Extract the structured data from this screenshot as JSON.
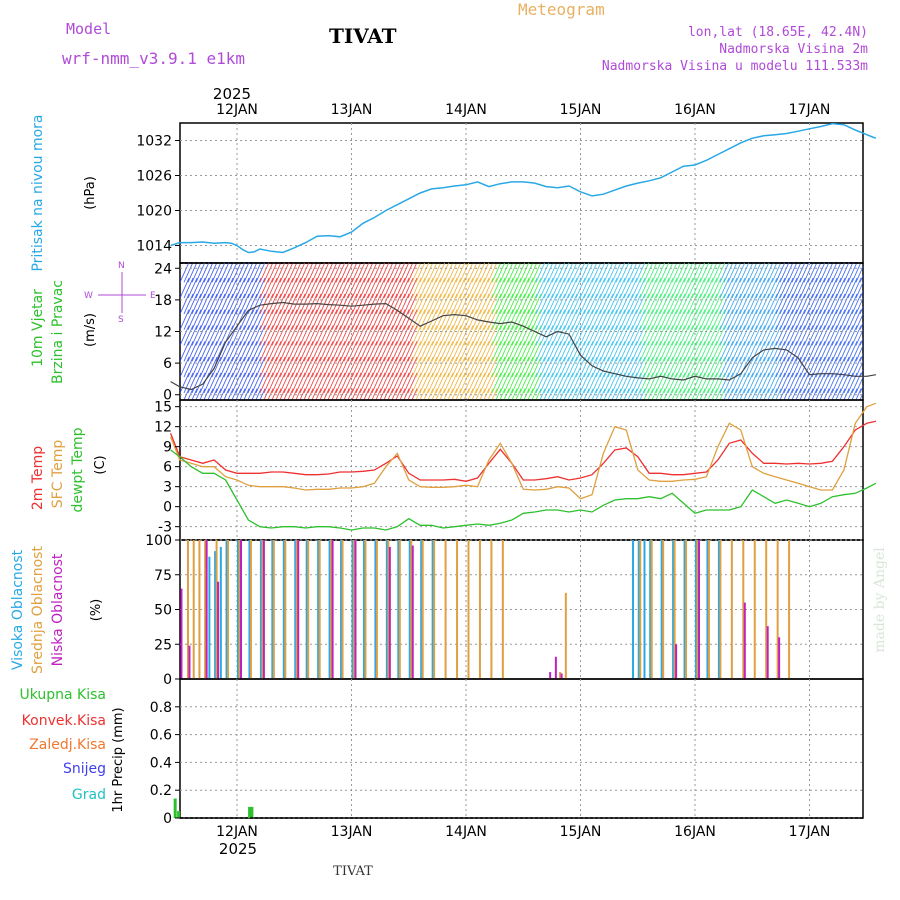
{
  "header": {
    "model_label": "Model",
    "model_name": "wrf-nmm_v3.9.1 e1km",
    "station": "TIVAT",
    "meteogram": "Meteogram",
    "lonlat": "lon,lat (18.65E, 42.4N)",
    "altitude": "Nadmorska Visina 2m",
    "model_altitude": "Nadmorska Visina u modelu 111.533m",
    "footer_station": "TIVAT",
    "credit": "made by Angel",
    "colors": {
      "model": "#b04ad8",
      "meteogram": "#e8b060",
      "station": "#000000"
    }
  },
  "time_axis": {
    "year": "2025",
    "days": [
      "12JAN",
      "13JAN",
      "14JAN",
      "15JAN",
      "16JAN",
      "17JAN"
    ]
  },
  "panels": {
    "pressure": {
      "label": "Pritisak na nivou mora",
      "unit": "(hPa)"
    },
    "wind": {
      "label1": "10m Vjetar",
      "label2": "Brzina i Pravac",
      "unit": "(m/s)",
      "compass": {
        "w": "W",
        "e": "E",
        "s": "S",
        "n": "N"
      }
    },
    "temp": {
      "label1": "2m Temp",
      "label2": "SFC Temp",
      "label3": "dewpt Temp",
      "unit": "(C)"
    },
    "cloud": {
      "label1": "Visoka Oblacnost",
      "label2": "Srednja Oblacnost",
      "label3": "Niska Oblacnost",
      "unit": "(%)"
    },
    "precip": {
      "legend": [
        "Ukupna Kisa",
        "Konvek.Kisa",
        "Zaledj.Kisa",
        "Snijeg",
        "Grad"
      ],
      "legend_colors": [
        "#2ec02e",
        "#ee3030",
        "#f07830",
        "#4040ee",
        "#20c0c0"
      ],
      "unit": "1hr Precip (mm)"
    }
  },
  "chart_data": [
    {
      "type": "line",
      "title": "Pritisak na nivou mora",
      "ylabel": "(hPa)",
      "x_unit": "days after 2025-01-12 00 UTC",
      "ylim": [
        1011,
        1035
      ],
      "yticks": [
        1014,
        1020,
        1026,
        1032
      ],
      "series": [
        {
          "color": "#29a8e6",
          "x": [
            -0.58,
            -0.5,
            -0.4,
            -0.3,
            -0.2,
            -0.1,
            -0.05,
            0.0,
            0.05,
            0.1,
            0.15,
            0.2,
            0.3,
            0.4,
            0.5,
            0.6,
            0.7,
            0.8,
            0.9,
            1.0,
            1.1,
            1.2,
            1.3,
            1.4,
            1.5,
            1.6,
            1.7,
            1.8,
            1.9,
            2.0,
            2.1,
            2.2,
            2.3,
            2.4,
            2.5,
            2.6,
            2.7,
            2.8,
            2.9,
            3.0,
            3.1,
            3.2,
            3.3,
            3.4,
            3.5,
            3.6,
            3.7,
            3.8,
            3.9,
            4.0,
            4.1,
            4.2,
            4.3,
            4.4,
            4.5,
            4.6,
            4.7,
            4.8,
            4.9,
            5.0,
            5.1,
            5.2,
            5.3,
            5.4,
            5.5,
            5.55,
            5.58
          ],
          "values": [
            1014.0,
            1014.5,
            1014.5,
            1014.6,
            1014.4,
            1014.5,
            1014.4,
            1014.0,
            1013.3,
            1012.8,
            1012.9,
            1013.4,
            1013.0,
            1012.8,
            1013.6,
            1014.5,
            1015.6,
            1015.7,
            1015.5,
            1016.3,
            1017.8,
            1018.8,
            1020.0,
            1021.0,
            1022.0,
            1023.0,
            1023.7,
            1023.9,
            1024.2,
            1024.4,
            1024.9,
            1024.1,
            1024.6,
            1024.9,
            1024.9,
            1024.7,
            1024.1,
            1023.9,
            1024.2,
            1023.2,
            1022.5,
            1022.8,
            1023.5,
            1024.2,
            1024.7,
            1025.1,
            1025.6,
            1026.6,
            1027.6,
            1027.8,
            1028.6,
            1029.6,
            1030.6,
            1031.6,
            1032.4,
            1032.8,
            1033.0,
            1033.2,
            1033.6,
            1034.0,
            1034.4,
            1034.9,
            1034.7,
            1033.8,
            1033.0,
            1032.6,
            1032.4
          ]
        }
      ]
    },
    {
      "type": "line",
      "title": "10m Vjetar Brzina i Pravac",
      "ylabel": "(m/s)",
      "x_unit": "days after 2025-01-12 00 UTC",
      "ylim": [
        -1,
        25
      ],
      "yticks": [
        0,
        6,
        12,
        18,
        24
      ],
      "series": [
        {
          "name": "10m Vjetar",
          "color": "#444444",
          "x": [
            -0.58,
            -0.5,
            -0.4,
            -0.3,
            -0.2,
            -0.1,
            0.0,
            0.1,
            0.2,
            0.3,
            0.4,
            0.5,
            0.6,
            0.7,
            0.8,
            0.9,
            1.0,
            1.1,
            1.2,
            1.3,
            1.4,
            1.5,
            1.6,
            1.7,
            1.8,
            1.9,
            2.0,
            2.1,
            2.2,
            2.3,
            2.4,
            2.5,
            2.6,
            2.7,
            2.8,
            2.9,
            3.0,
            3.1,
            3.2,
            3.3,
            3.4,
            3.5,
            3.6,
            3.7,
            3.8,
            3.9,
            4.0,
            4.1,
            4.2,
            4.3,
            4.4,
            4.5,
            4.6,
            4.7,
            4.8,
            4.9,
            5.0,
            5.1,
            5.2,
            5.3,
            5.4,
            5.5,
            5.58
          ],
          "values": [
            2.5,
            1.5,
            1.0,
            2.0,
            5.0,
            10.0,
            13.0,
            16.0,
            17.0,
            17.3,
            17.5,
            17.2,
            17.2,
            17.3,
            17.1,
            17.0,
            16.8,
            17.0,
            17.2,
            17.3,
            16.0,
            14.5,
            13.0,
            14.0,
            15.0,
            15.2,
            15.0,
            14.2,
            13.8,
            13.5,
            13.8,
            13.0,
            12.0,
            11.0,
            12.0,
            11.5,
            7.5,
            5.5,
            4.5,
            4.0,
            3.5,
            3.2,
            3.0,
            3.5,
            3.0,
            2.8,
            3.5,
            3.0,
            3.0,
            2.8,
            4.0,
            7.0,
            8.5,
            8.8,
            8.5,
            7.0,
            3.8,
            4.0,
            4.0,
            3.8,
            3.5,
            3.5,
            3.8
          ]
        }
      ]
    },
    {
      "type": "line",
      "title": "2m Temp / SFC Temp / dewpt Temp",
      "ylabel": "(C)",
      "x_unit": "days after 2025-01-12 00 UTC",
      "ylim": [
        -5,
        16
      ],
      "yticks": [
        -3,
        0,
        3,
        6,
        9,
        12,
        15
      ],
      "series": [
        {
          "name": "2m Temp",
          "color": "#ee3030",
          "x": [
            -0.58,
            -0.5,
            -0.4,
            -0.3,
            -0.2,
            -0.1,
            0.0,
            0.1,
            0.2,
            0.3,
            0.4,
            0.5,
            0.6,
            0.7,
            0.8,
            0.9,
            1.0,
            1.1,
            1.2,
            1.3,
            1.4,
            1.5,
            1.6,
            1.7,
            1.8,
            1.9,
            2.0,
            2.1,
            2.2,
            2.3,
            2.4,
            2.5,
            2.6,
            2.7,
            2.8,
            2.9,
            3.0,
            3.1,
            3.2,
            3.3,
            3.4,
            3.5,
            3.6,
            3.7,
            3.8,
            3.9,
            4.0,
            4.1,
            4.2,
            4.3,
            4.4,
            4.5,
            4.6,
            4.7,
            4.8,
            4.9,
            5.0,
            5.1,
            5.2,
            5.3,
            5.4,
            5.5,
            5.58
          ],
          "values": [
            11.0,
            7.5,
            7.0,
            6.5,
            7.0,
            5.5,
            5.0,
            5.0,
            5.0,
            5.2,
            5.2,
            5.0,
            4.8,
            4.8,
            4.9,
            5.2,
            5.2,
            5.3,
            5.5,
            6.5,
            7.6,
            5.0,
            4.0,
            4.0,
            4.0,
            4.1,
            3.8,
            4.3,
            6.5,
            8.6,
            6.5,
            4.0,
            4.0,
            4.2,
            4.5,
            4.0,
            4.3,
            4.8,
            6.5,
            8.5,
            8.8,
            7.5,
            5.0,
            5.0,
            4.8,
            4.8,
            5.0,
            5.2,
            7.0,
            9.5,
            10.0,
            8.0,
            6.5,
            6.5,
            6.4,
            6.5,
            6.4,
            6.5,
            6.8,
            9.0,
            11.5,
            12.5,
            12.8
          ]
        },
        {
          "name": "SFC Temp",
          "color": "#e0a040",
          "x": [
            -0.58,
            -0.5,
            -0.4,
            -0.3,
            -0.2,
            -0.1,
            0.0,
            0.1,
            0.2,
            0.3,
            0.4,
            0.5,
            0.6,
            0.7,
            0.8,
            0.9,
            1.0,
            1.1,
            1.2,
            1.3,
            1.4,
            1.5,
            1.6,
            1.7,
            1.8,
            1.9,
            2.0,
            2.1,
            2.2,
            2.3,
            2.4,
            2.5,
            2.6,
            2.7,
            2.8,
            2.9,
            3.0,
            3.1,
            3.2,
            3.3,
            3.4,
            3.5,
            3.6,
            3.7,
            3.8,
            3.9,
            4.0,
            4.1,
            4.2,
            4.3,
            4.4,
            4.5,
            4.6,
            4.7,
            4.8,
            4.9,
            5.0,
            5.1,
            5.2,
            5.3,
            5.4,
            5.5,
            5.58
          ],
          "values": [
            10.5,
            7.0,
            6.5,
            6.0,
            6.0,
            4.5,
            4.0,
            3.2,
            3.0,
            3.0,
            3.0,
            2.8,
            2.5,
            2.6,
            2.6,
            2.8,
            2.8,
            3.0,
            3.5,
            6.0,
            8.0,
            4.0,
            3.0,
            2.9,
            2.9,
            3.0,
            3.2,
            3.0,
            7.0,
            9.5,
            6.5,
            2.6,
            2.5,
            2.6,
            3.0,
            2.8,
            1.2,
            1.8,
            8.0,
            12.0,
            11.5,
            5.5,
            4.0,
            3.8,
            3.8,
            4.0,
            4.1,
            4.5,
            9.0,
            12.5,
            11.5,
            6.0,
            5.0,
            4.5,
            4.0,
            3.5,
            3.0,
            2.5,
            2.5,
            5.5,
            12.5,
            15.0,
            15.5
          ]
        },
        {
          "name": "dewpt Temp",
          "color": "#2ec02e",
          "x": [
            -0.58,
            -0.5,
            -0.4,
            -0.3,
            -0.2,
            -0.1,
            0.0,
            0.1,
            0.2,
            0.3,
            0.4,
            0.5,
            0.6,
            0.7,
            0.8,
            0.9,
            1.0,
            1.1,
            1.2,
            1.3,
            1.4,
            1.5,
            1.6,
            1.7,
            1.8,
            1.9,
            2.0,
            2.1,
            2.2,
            2.3,
            2.4,
            2.5,
            2.6,
            2.7,
            2.8,
            2.9,
            3.0,
            3.1,
            3.2,
            3.3,
            3.4,
            3.5,
            3.6,
            3.7,
            3.8,
            3.9,
            4.0,
            4.1,
            4.2,
            4.3,
            4.4,
            4.5,
            4.6,
            4.7,
            4.8,
            4.9,
            5.0,
            5.1,
            5.2,
            5.3,
            5.4,
            5.5,
            5.58
          ],
          "values": [
            8.5,
            7.5,
            6.0,
            5.0,
            5.0,
            4.0,
            1.0,
            -2.0,
            -3.0,
            -3.2,
            -3.0,
            -3.0,
            -3.2,
            -3.0,
            -3.0,
            -3.2,
            -3.5,
            -3.2,
            -3.2,
            -3.5,
            -3.0,
            -1.8,
            -2.8,
            -2.8,
            -3.2,
            -3.0,
            -2.8,
            -2.6,
            -2.8,
            -2.5,
            -2.0,
            -1.0,
            -0.8,
            -0.5,
            -0.5,
            -0.8,
            -0.5,
            -0.8,
            0.2,
            1.0,
            1.2,
            1.2,
            1.5,
            1.2,
            2.0,
            0.5,
            -1.0,
            -0.5,
            -0.5,
            -0.5,
            0.0,
            2.5,
            1.5,
            0.5,
            1.0,
            0.5,
            0.0,
            0.5,
            1.5,
            1.8,
            2.0,
            2.8,
            3.5
          ]
        }
      ]
    },
    {
      "type": "bar",
      "title": "Visoka / Srednja / Niska Oblacnost",
      "ylabel": "(%)",
      "x_unit": "days after 2025-01-12 00 UTC",
      "ylim": [
        0,
        100
      ],
      "yticks": [
        0,
        25,
        50,
        75,
        100
      ],
      "series": [
        {
          "name": "Visoka Oblacnost",
          "color": "#29a8e6",
          "x": [
            -0.25,
            -0.2,
            -0.15,
            -0.1,
            0.0,
            0.1,
            0.2,
            0.3,
            0.4,
            0.5,
            0.6,
            0.7,
            0.8,
            0.9,
            1.0,
            1.1,
            1.2,
            1.3,
            1.4,
            1.5,
            1.6,
            1.7,
            3.45,
            3.5,
            3.55,
            3.6,
            3.7,
            3.8,
            3.9,
            4.0,
            4.1,
            4.2
          ],
          "values": [
            88,
            92,
            95,
            100,
            100,
            100,
            100,
            100,
            100,
            100,
            100,
            100,
            100,
            100,
            100,
            100,
            100,
            100,
            100,
            100,
            100,
            100,
            100,
            100,
            100,
            100,
            100,
            100,
            100,
            100,
            100,
            100
          ]
        },
        {
          "name": "Srednja Oblacnost",
          "color": "#e0a040",
          "x": [
            -0.45,
            -0.4,
            -0.35,
            -0.3,
            -0.2,
            -0.1,
            0.0,
            0.1,
            0.2,
            0.3,
            0.4,
            0.5,
            0.6,
            0.7,
            0.8,
            0.9,
            1.0,
            1.1,
            1.2,
            1.3,
            1.4,
            1.5,
            1.6,
            1.7,
            1.8,
            1.9,
            2.0,
            2.1,
            2.2,
            2.3,
            2.8,
            2.85,
            3.5,
            3.6,
            3.7,
            3.8,
            3.9,
            4.0,
            4.1,
            4.2,
            4.3,
            4.4,
            4.5,
            4.6,
            4.7,
            4.8
          ],
          "values": [
            100,
            100,
            100,
            100,
            100,
            100,
            100,
            100,
            100,
            100,
            100,
            100,
            100,
            100,
            100,
            100,
            100,
            100,
            100,
            100,
            100,
            100,
            100,
            100,
            100,
            100,
            100,
            100,
            100,
            100,
            5,
            62,
            100,
            100,
            100,
            100,
            100,
            100,
            100,
            100,
            100,
            100,
            100,
            100,
            100,
            100
          ]
        },
        {
          "name": "Niska Oblacnost",
          "color": "#c020c0",
          "x": [
            -0.52,
            -0.45,
            -0.3,
            -0.2,
            0.0,
            0.2,
            0.5,
            0.8,
            1.0,
            1.3,
            1.5,
            2.7,
            2.75,
            2.8,
            3.8,
            4.0,
            4.4,
            4.6,
            4.7
          ],
          "values": [
            65,
            24,
            100,
            70,
            100,
            100,
            100,
            100,
            100,
            95,
            96,
            5,
            16,
            4,
            25,
            100,
            55,
            38,
            30
          ]
        }
      ]
    },
    {
      "type": "bar",
      "title": "1hr Precip",
      "ylabel": "1hr Precip (mm)",
      "x_unit": "days after 2025-01-12 00 UTC",
      "ylim": [
        0,
        1.0
      ],
      "yticks": [
        0,
        0.2,
        0.4,
        0.6,
        0.8
      ],
      "series": [
        {
          "name": "Ukupna Kisa",
          "color": "#2ec02e",
          "x": [
            -0.54,
            -0.51,
            0.11,
            0.13
          ],
          "values": [
            0.14,
            0.05,
            0.08,
            0.08
          ]
        }
      ]
    }
  ]
}
